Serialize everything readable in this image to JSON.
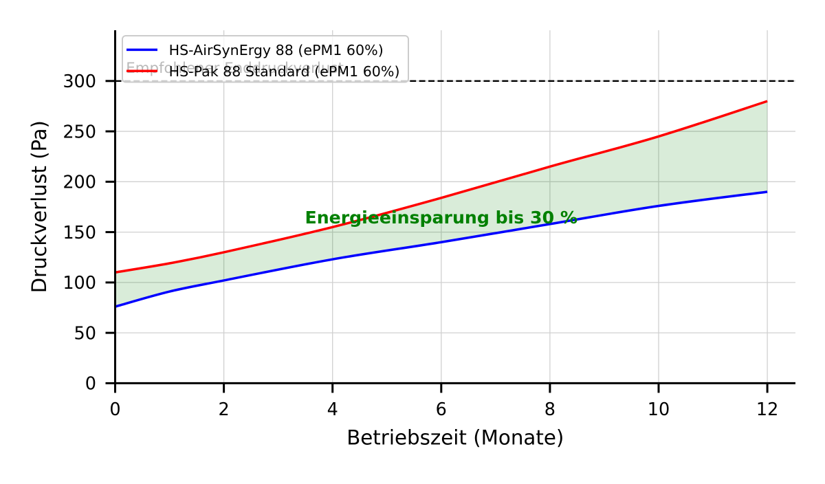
{
  "page": {
    "background": "#ffffff"
  },
  "chart_data": {
    "type": "line",
    "title": "",
    "xlabel": "Betriebszeit (Monate)",
    "ylabel": "Druckverlust (Pa)",
    "xlim": [
      0,
      12.52
    ],
    "ylim": [
      0,
      350
    ],
    "xticks": [
      0,
      2,
      4,
      6,
      8,
      10,
      12
    ],
    "yticks": [
      0,
      50,
      100,
      150,
      200,
      250,
      300
    ],
    "grid": true,
    "grid_color": "#d0d0d0",
    "axis_color": "#000000",
    "x": [
      0,
      1,
      2,
      4,
      6,
      8,
      10,
      12
    ],
    "series": [
      {
        "name": "HS-AirSynErgy 88 (ePM1 60%)",
        "color": "#0000ff",
        "values": [
          76,
          91,
          102,
          123,
          140,
          158,
          176,
          190
        ]
      },
      {
        "name": "HS-Pak 88 Standard (ePM1 60%)",
        "color": "#ff0000",
        "values": [
          110,
          119,
          130,
          155,
          184,
          215,
          245,
          280
        ]
      }
    ],
    "legend": {
      "position": "upper left",
      "entries": [
        {
          "label": "HS-AirSynErgy 88 (ePM1 60%)",
          "color": "#0000ff"
        },
        {
          "label": "HS-Pak 88 Standard (ePM1 60%)",
          "color": "#ff0000"
        }
      ],
      "border_color": "#cccccc",
      "background": "#ffffff",
      "background_opacity": 0.8
    },
    "threshold_line": {
      "y": 300,
      "style": "dashed",
      "color": "#000000"
    },
    "threshold_label": {
      "text": "Empfohlener Enddruckverlust",
      "x": 0.2,
      "y": 308,
      "color": "#b9b9b9"
    },
    "savings_area": {
      "between": [
        "HS-Pak 88 Standard (ePM1 60%)",
        "HS-AirSynErgy 88 (ePM1 60%)"
      ],
      "fill_color": "#008000",
      "fill_opacity": 0.15
    },
    "savings_label": {
      "text": "Energieeinsparung bis 30 %",
      "x": 6,
      "y": 165,
      "color": "#008000",
      "bold": true
    }
  }
}
